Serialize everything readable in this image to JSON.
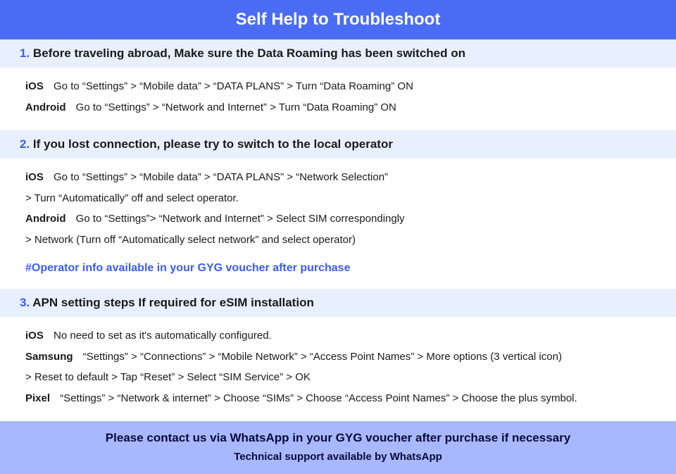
{
  "colors": {
    "header_bg": "#4a6cf5",
    "header_text": "#ffffff",
    "section_title_bg": "#e8f0ff",
    "accent": "#3a5cf0",
    "body_text": "#1a1a1a",
    "footer_bg": "#a8b8ff",
    "footer_text": "#0a0a3a",
    "page_bg": "#ffffff"
  },
  "header": {
    "title": "Self Help to Troubleshoot"
  },
  "sections": [
    {
      "num": "1.",
      "lead": "Before traveling abroad,",
      "rest": "Make sure the Data Roaming has been switched on",
      "rows": [
        {
          "platform": "iOS",
          "text": "Go to “Settings” > “Mobile data” > “DATA PLANS” > Turn “Data Roaming” ON"
        },
        {
          "platform": "Android",
          "text": "Go to “Settings” > “Network and Internet” > Turn “Data Roaming” ON"
        }
      ]
    },
    {
      "num": "2.",
      "lead": "",
      "rest": "If you lost connection, please try to switch to the local operator",
      "rows": [
        {
          "platform": "iOS",
          "text": "Go to “Settings” > “Mobile data” > “DATA PLANS” > “Network Selection”"
        },
        {
          "platform": "",
          "text": "> Turn “Automatically” off and select operator."
        },
        {
          "platform": "Android",
          "text": "Go to “Settings”>  “Network and Internet” > Select SIM correspondingly"
        },
        {
          "platform": "",
          "text": "> Network (Turn off “Automatically select network” and select operator)"
        }
      ],
      "note": "#Operator info available in your GYG voucher after purchase"
    },
    {
      "num": "3.",
      "lead": "",
      "rest": "APN setting steps If required for eSIM installation",
      "rows": [
        {
          "platform": "iOS",
          "text": "No need to set as it's automatically configured."
        },
        {
          "platform": "Samsung",
          "text": "“Settings” > “Connections” > “Mobile Network” > “Access Point Names” > More options (3 vertical icon)"
        },
        {
          "platform": "",
          "text": "> Reset to default > Tap “Reset” > Select “SIM Service” > OK"
        },
        {
          "platform": "Pixel",
          "text": "“Settings” > “Network & internet” > Choose “SIMs” > Choose “Access Point Names” > Choose the plus symbol."
        }
      ]
    }
  ],
  "footer": {
    "line1": "Please contact us via WhatsApp  in your GYG voucher after purchase if necessary",
    "line2": "Technical support available by WhatsApp"
  }
}
